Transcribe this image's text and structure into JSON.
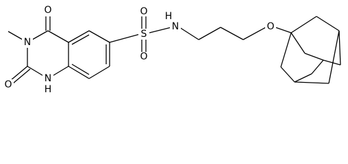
{
  "atoms": [
    {
      "label": "O"
    },
    {
      "label": "N"
    },
    {
      "label": "O"
    },
    {
      "label": "N"
    },
    {
      "label": "H"
    },
    {
      "label": "S"
    },
    {
      "label": "O"
    },
    {
      "label": "O"
    },
    {
      "label": "N"
    },
    {
      "label": "H"
    },
    {
      "label": "O"
    }
  ]
}
